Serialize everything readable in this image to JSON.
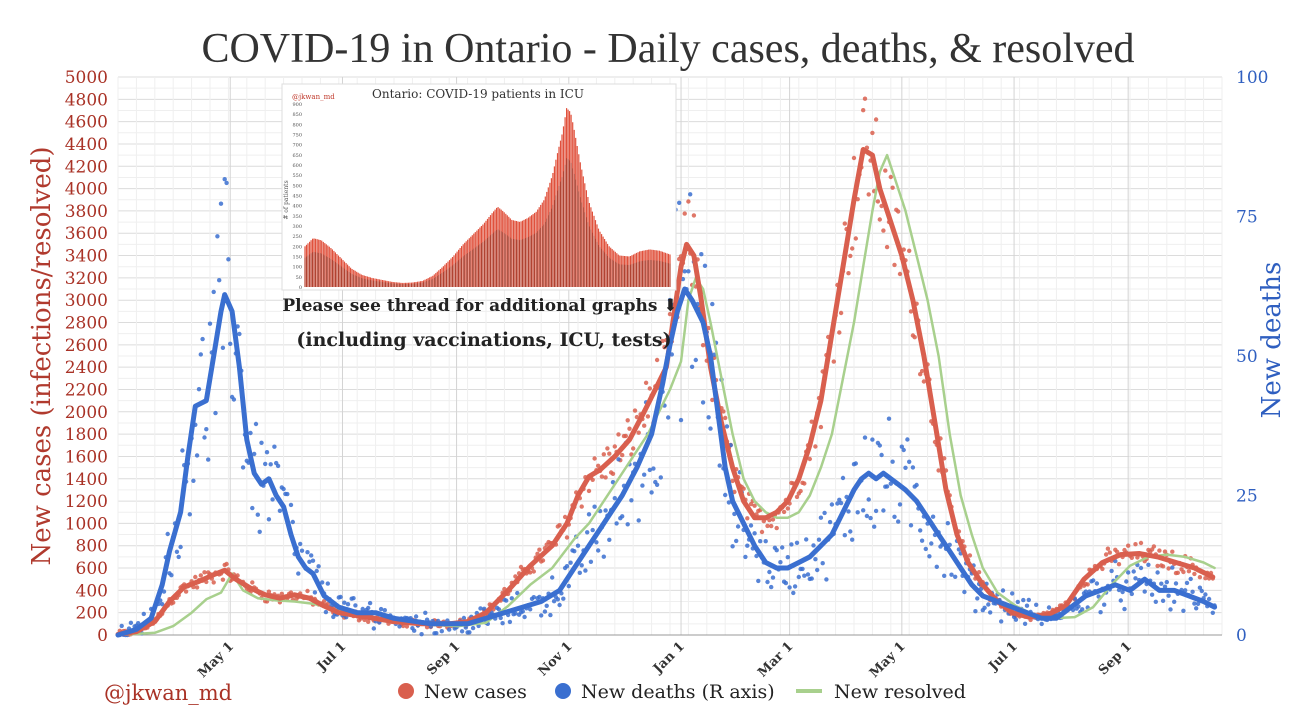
{
  "chart_data": {
    "type": "line",
    "title": "COVID-19 in Ontario - Daily cases, deaths, & resolved",
    "ylabel_left": "New cases (infections/resolved)",
    "ylabel_right": "New deaths",
    "ylim_left": [
      0,
      5000
    ],
    "ylim_right": [
      0,
      100
    ],
    "xlim": [
      0,
      600
    ],
    "left_ticks": [
      0,
      200,
      400,
      600,
      800,
      1000,
      1200,
      1400,
      1600,
      1800,
      2000,
      2200,
      2400,
      2600,
      2800,
      3000,
      3200,
      3400,
      3600,
      3800,
      4000,
      4200,
      4400,
      4600,
      4800,
      5000
    ],
    "right_ticks": [
      0,
      25,
      50,
      75,
      100
    ],
    "x_ticks": [
      {
        "label": "May 1",
        "x": 61
      },
      {
        "label": "Jul 1",
        "x": 122
      },
      {
        "label": "Sep 1",
        "x": 184
      },
      {
        "label": "Nov 1",
        "x": 245
      },
      {
        "label": "Jan 1",
        "x": 306
      },
      {
        "label": "Mar 1",
        "x": 365
      },
      {
        "label": "May 1",
        "x": 426
      },
      {
        "label": "Jul 1",
        "x": 487
      },
      {
        "label": "Sep 1",
        "x": 549
      }
    ],
    "grid": true,
    "legend_position": "bottom",
    "credit": "@jkwan_md",
    "series": [
      {
        "name": "New cases",
        "axis": "left",
        "color": "#d95f4e",
        "points": [
          [
            0,
            5
          ],
          [
            10,
            30
          ],
          [
            20,
            120
          ],
          [
            28,
            300
          ],
          [
            36,
            430
          ],
          [
            44,
            480
          ],
          [
            52,
            540
          ],
          [
            58,
            580
          ],
          [
            64,
            500
          ],
          [
            72,
            420
          ],
          [
            80,
            360
          ],
          [
            88,
            330
          ],
          [
            96,
            360
          ],
          [
            104,
            330
          ],
          [
            112,
            260
          ],
          [
            120,
            200
          ],
          [
            135,
            160
          ],
          [
            150,
            120
          ],
          [
            165,
            100
          ],
          [
            180,
            100
          ],
          [
            190,
            120
          ],
          [
            200,
            200
          ],
          [
            212,
            400
          ],
          [
            224,
            620
          ],
          [
            236,
            800
          ],
          [
            244,
            1000
          ],
          [
            250,
            1250
          ],
          [
            256,
            1420
          ],
          [
            262,
            1480
          ],
          [
            270,
            1600
          ],
          [
            278,
            1750
          ],
          [
            286,
            2000
          ],
          [
            292,
            2200
          ],
          [
            298,
            2400
          ],
          [
            302,
            2850
          ],
          [
            306,
            3300
          ],
          [
            309,
            3500
          ],
          [
            313,
            3400
          ],
          [
            317,
            3000
          ],
          [
            322,
            2400
          ],
          [
            328,
            1900
          ],
          [
            334,
            1500
          ],
          [
            340,
            1200
          ],
          [
            346,
            1050
          ],
          [
            352,
            1050
          ],
          [
            358,
            1100
          ],
          [
            364,
            1200
          ],
          [
            370,
            1400
          ],
          [
            376,
            1700
          ],
          [
            382,
            2100
          ],
          [
            388,
            2700
          ],
          [
            394,
            3300
          ],
          [
            400,
            3900
          ],
          [
            405,
            4350
          ],
          [
            410,
            4300
          ],
          [
            414,
            4000
          ],
          [
            420,
            3700
          ],
          [
            426,
            3400
          ],
          [
            432,
            3000
          ],
          [
            438,
            2500
          ],
          [
            444,
            1900
          ],
          [
            450,
            1300
          ],
          [
            456,
            900
          ],
          [
            462,
            650
          ],
          [
            470,
            450
          ],
          [
            478,
            300
          ],
          [
            486,
            200
          ],
          [
            495,
            160
          ],
          [
            505,
            180
          ],
          [
            515,
            260
          ],
          [
            525,
            500
          ],
          [
            535,
            650
          ],
          [
            545,
            720
          ],
          [
            555,
            730
          ],
          [
            565,
            700
          ],
          [
            575,
            650
          ],
          [
            585,
            600
          ],
          [
            595,
            520
          ]
        ]
      },
      {
        "name": "New deaths (R axis)",
        "axis": "right",
        "color": "#3a6fd0",
        "points": [
          [
            0,
            0
          ],
          [
            10,
            1
          ],
          [
            18,
            3
          ],
          [
            24,
            9
          ],
          [
            28,
            15
          ],
          [
            34,
            22
          ],
          [
            38,
            32
          ],
          [
            42,
            41
          ],
          [
            48,
            42
          ],
          [
            52,
            50
          ],
          [
            56,
            58
          ],
          [
            58,
            61
          ],
          [
            62,
            58
          ],
          [
            66,
            48
          ],
          [
            70,
            35
          ],
          [
            74,
            29
          ],
          [
            78,
            27
          ],
          [
            82,
            28
          ],
          [
            86,
            25
          ],
          [
            90,
            23
          ],
          [
            94,
            18
          ],
          [
            98,
            14
          ],
          [
            102,
            12
          ],
          [
            106,
            11
          ],
          [
            112,
            7
          ],
          [
            120,
            5
          ],
          [
            130,
            4
          ],
          [
            140,
            4
          ],
          [
            150,
            3
          ],
          [
            160,
            2.5
          ],
          [
            170,
            2
          ],
          [
            180,
            2
          ],
          [
            190,
            2
          ],
          [
            200,
            3
          ],
          [
            210,
            4
          ],
          [
            220,
            5
          ],
          [
            230,
            6
          ],
          [
            240,
            8
          ],
          [
            248,
            12
          ],
          [
            256,
            16
          ],
          [
            262,
            19
          ],
          [
            268,
            22
          ],
          [
            274,
            25
          ],
          [
            282,
            30
          ],
          [
            290,
            36
          ],
          [
            296,
            45
          ],
          [
            300,
            52
          ],
          [
            304,
            58
          ],
          [
            308,
            62
          ],
          [
            312,
            60
          ],
          [
            318,
            56
          ],
          [
            322,
            50
          ],
          [
            326,
            40
          ],
          [
            330,
            30
          ],
          [
            334,
            24
          ],
          [
            340,
            20
          ],
          [
            346,
            16
          ],
          [
            352,
            13
          ],
          [
            358,
            12
          ],
          [
            364,
            12
          ],
          [
            370,
            13
          ],
          [
            376,
            14
          ],
          [
            382,
            16
          ],
          [
            388,
            18
          ],
          [
            394,
            22
          ],
          [
            400,
            26
          ],
          [
            404,
            28
          ],
          [
            408,
            29
          ],
          [
            412,
            28
          ],
          [
            416,
            29
          ],
          [
            420,
            28
          ],
          [
            424,
            27
          ],
          [
            428,
            26
          ],
          [
            434,
            24
          ],
          [
            440,
            21
          ],
          [
            446,
            18
          ],
          [
            452,
            15
          ],
          [
            458,
            12
          ],
          [
            464,
            9
          ],
          [
            470,
            7
          ],
          [
            478,
            6
          ],
          [
            486,
            5
          ],
          [
            494,
            4
          ],
          [
            502,
            3
          ],
          [
            510,
            3
          ],
          [
            518,
            5
          ],
          [
            526,
            7
          ],
          [
            534,
            8
          ],
          [
            542,
            9
          ],
          [
            550,
            8
          ],
          [
            558,
            10
          ],
          [
            566,
            8
          ],
          [
            574,
            8
          ],
          [
            582,
            7
          ],
          [
            590,
            6
          ],
          [
            596,
            5
          ]
        ]
      },
      {
        "name": "New resolved",
        "axis": "left",
        "color": "#a8d08d",
        "points": [
          [
            0,
            0
          ],
          [
            20,
            20
          ],
          [
            30,
            80
          ],
          [
            40,
            200
          ],
          [
            48,
            320
          ],
          [
            56,
            380
          ],
          [
            62,
            550
          ],
          [
            68,
            400
          ],
          [
            76,
            330
          ],
          [
            86,
            310
          ],
          [
            96,
            300
          ],
          [
            106,
            280
          ],
          [
            116,
            240
          ],
          [
            126,
            180
          ],
          [
            140,
            150
          ],
          [
            155,
            110
          ],
          [
            170,
            90
          ],
          [
            185,
            80
          ],
          [
            200,
            110
          ],
          [
            212,
            260
          ],
          [
            224,
            450
          ],
          [
            236,
            600
          ],
          [
            248,
            860
          ],
          [
            256,
            1000
          ],
          [
            264,
            1200
          ],
          [
            272,
            1400
          ],
          [
            280,
            1600
          ],
          [
            288,
            1800
          ],
          [
            294,
            2000
          ],
          [
            300,
            2200
          ],
          [
            306,
            2450
          ],
          [
            310,
            3000
          ],
          [
            314,
            3200
          ],
          [
            318,
            3100
          ],
          [
            322,
            2800
          ],
          [
            328,
            2300
          ],
          [
            334,
            1800
          ],
          [
            340,
            1400
          ],
          [
            346,
            1200
          ],
          [
            352,
            1100
          ],
          [
            358,
            1050
          ],
          [
            364,
            1050
          ],
          [
            370,
            1100
          ],
          [
            376,
            1250
          ],
          [
            382,
            1500
          ],
          [
            388,
            1800
          ],
          [
            394,
            2300
          ],
          [
            400,
            2800
          ],
          [
            406,
            3400
          ],
          [
            410,
            3800
          ],
          [
            414,
            4150
          ],
          [
            418,
            4300
          ],
          [
            422,
            4100
          ],
          [
            428,
            3800
          ],
          [
            434,
            3400
          ],
          [
            440,
            3000
          ],
          [
            446,
            2500
          ],
          [
            452,
            1800
          ],
          [
            458,
            1250
          ],
          [
            464,
            900
          ],
          [
            470,
            600
          ],
          [
            478,
            380
          ],
          [
            488,
            260
          ],
          [
            498,
            180
          ],
          [
            508,
            150
          ],
          [
            520,
            160
          ],
          [
            530,
            250
          ],
          [
            540,
            450
          ],
          [
            550,
            620
          ],
          [
            560,
            700
          ],
          [
            570,
            720
          ],
          [
            580,
            700
          ],
          [
            590,
            650
          ],
          [
            596,
            600
          ]
        ]
      }
    ],
    "inset": {
      "title": "Ontario: COVID-19 patients in ICU",
      "credit": "@jkwan_md",
      "ylabel": "# of patients",
      "ylim": [
        0,
        900
      ],
      "ticks": [
        0,
        50,
        100,
        150,
        200,
        250,
        300,
        350,
        400,
        450,
        500,
        550,
        600,
        650,
        700,
        750,
        800,
        850,
        900
      ],
      "values": [
        [
          0,
          200
        ],
        [
          8,
          240
        ],
        [
          16,
          230
        ],
        [
          26,
          190
        ],
        [
          36,
          140
        ],
        [
          46,
          90
        ],
        [
          56,
          60
        ],
        [
          66,
          45
        ],
        [
          76,
          35
        ],
        [
          86,
          25
        ],
        [
          96,
          20
        ],
        [
          106,
          22
        ],
        [
          116,
          30
        ],
        [
          126,
          55
        ],
        [
          136,
          100
        ],
        [
          146,
          150
        ],
        [
          156,
          210
        ],
        [
          166,
          260
        ],
        [
          176,
          310
        ],
        [
          184,
          360
        ],
        [
          190,
          395
        ],
        [
          196,
          370
        ],
        [
          204,
          330
        ],
        [
          212,
          320
        ],
        [
          220,
          340
        ],
        [
          228,
          370
        ],
        [
          236,
          430
        ],
        [
          244,
          550
        ],
        [
          250,
          680
        ],
        [
          254,
          760
        ],
        [
          258,
          880
        ],
        [
          262,
          860
        ],
        [
          266,
          760
        ],
        [
          272,
          600
        ],
        [
          280,
          420
        ],
        [
          290,
          280
        ],
        [
          300,
          200
        ],
        [
          310,
          155
        ],
        [
          320,
          150
        ],
        [
          330,
          175
        ],
        [
          340,
          185
        ],
        [
          350,
          178
        ],
        [
          360,
          160
        ]
      ]
    },
    "annotations": [
      "Please see thread for additional graphs ⬇",
      "(including vaccinations, ICU, tests)"
    ]
  }
}
